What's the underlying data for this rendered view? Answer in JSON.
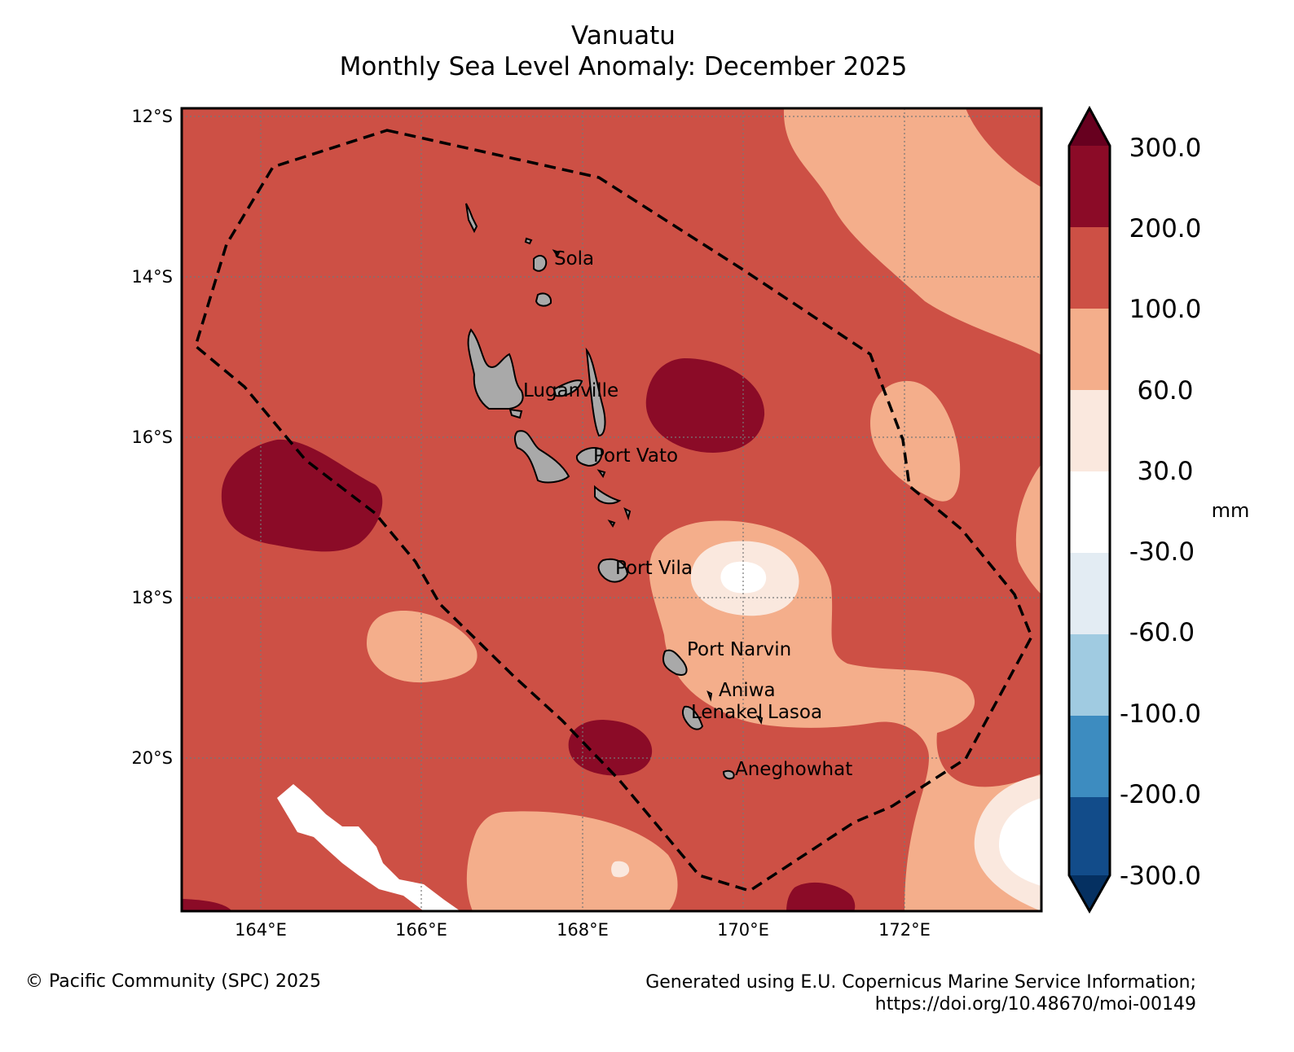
{
  "title": "Vanuatu",
  "subtitle": "Monthly Sea Level Anomaly: December 2025",
  "footer": {
    "left": "© Pacific Community (SPC) 2025",
    "right_line1": "Generated using E.U. Copernicus Marine Service Information;",
    "right_line2": "https://doi.org/10.48670/moi-00149"
  },
  "map": {
    "lon_labels": [
      "164°E",
      "166°E",
      "168°E",
      "170°E",
      "172°E"
    ],
    "lat_labels": [
      "12°S",
      "14°S",
      "16°S",
      "18°S",
      "20°S"
    ],
    "places": [
      {
        "name": "Sola"
      },
      {
        "name": "Luganville"
      },
      {
        "name": "Port Vato"
      },
      {
        "name": "Port Vila"
      },
      {
        "name": "Port Narvin"
      },
      {
        "name": "Aniwa"
      },
      {
        "name": "Lenakel"
      },
      {
        "name": "Lasoa"
      },
      {
        "name": "Aneghowhat"
      }
    ]
  },
  "colorbar": {
    "unit": "mm",
    "labels": [
      "300.0",
      "200.0",
      "100.0",
      "60.0",
      "30.0",
      "-30.0",
      "-60.0",
      "-100.0",
      "-200.0",
      "-300.0"
    ],
    "colors": [
      "#67001f",
      "#8b0b27",
      "#cd5045",
      "#f4ae8b",
      "#fae8de",
      "#ffffff",
      "#e3ecf3",
      "#a0cbe1",
      "#3d8cc0",
      "#124c8a",
      "#053061"
    ]
  }
}
